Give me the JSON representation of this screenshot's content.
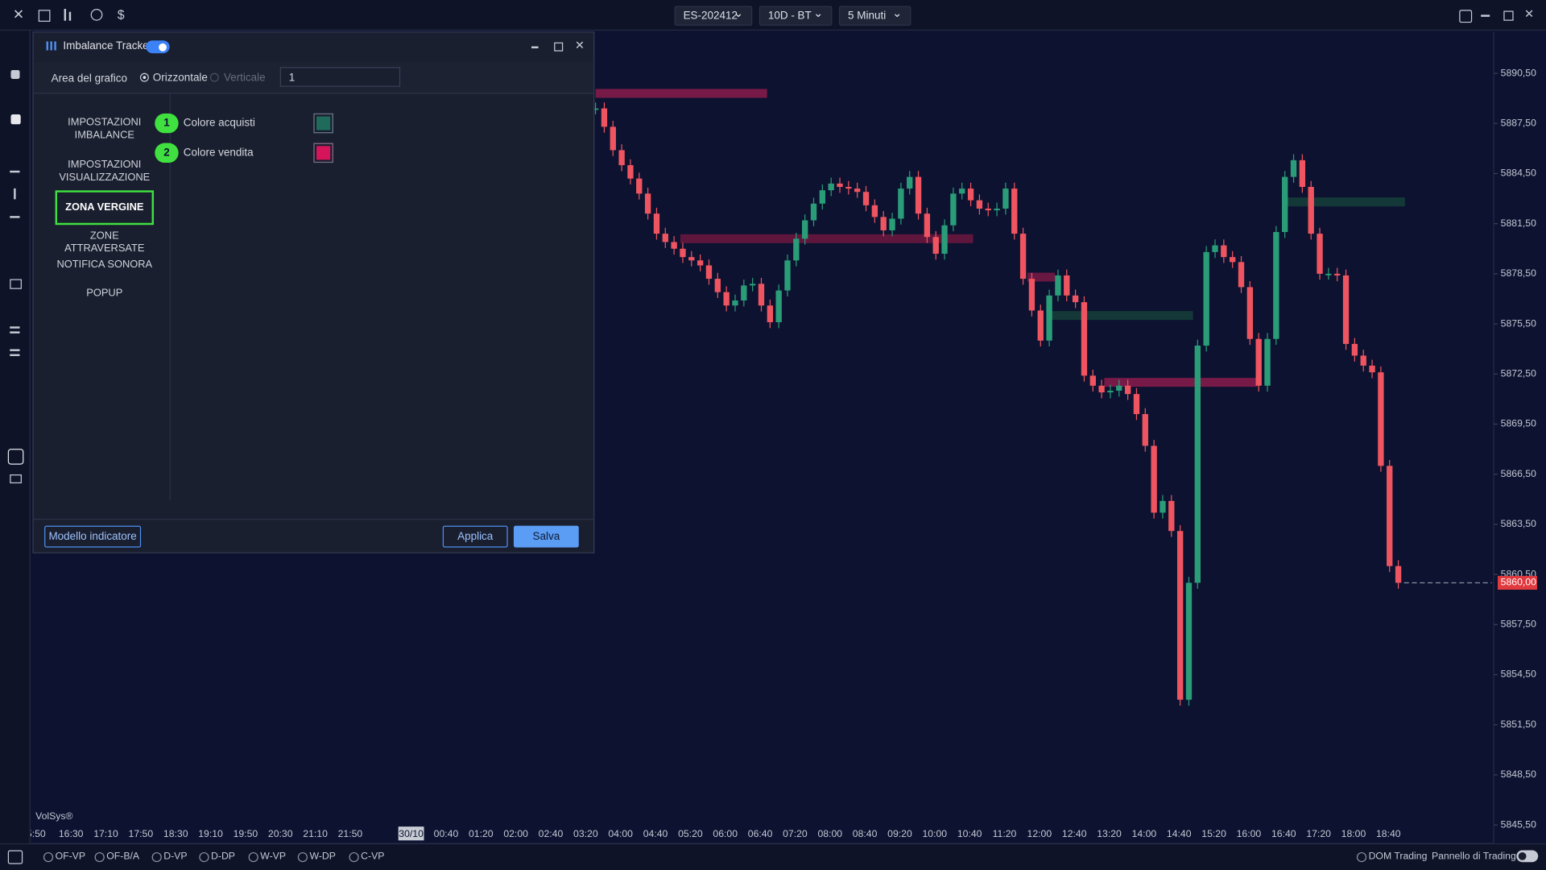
{
  "chart_data": {
    "type": "candlestick",
    "x": [
      "5:50",
      "16:30",
      "17:10",
      "17:50",
      "18:30",
      "19:10",
      "19:50",
      "20:30",
      "21:10",
      "21:50",
      "30/10",
      "00:40",
      "01:20",
      "02:00",
      "02:40",
      "03:20",
      "04:00",
      "04:40",
      "05:20",
      "06:00",
      "06:40",
      "07:20",
      "08:00",
      "08:40",
      "09:20",
      "10:00",
      "10:40",
      "11:20",
      "12:00",
      "12:40",
      "13:20",
      "14:00",
      "14:40",
      "15:20",
      "16:00",
      "16:40",
      "17:20",
      "18:00",
      "18:40"
    ],
    "closes": [
      5888.4,
      5887.3,
      5885.9,
      5885.0,
      5884.2,
      5883.3,
      5882.1,
      5880.9,
      5880.4,
      5880.0,
      5879.5,
      5879.3,
      5879.0,
      5878.2,
      5877.4,
      5876.6,
      5876.9,
      5877.8,
      5877.9,
      5876.6,
      5875.6,
      5877.5,
      5879.3,
      5880.6,
      5881.7,
      5882.7,
      5883.5,
      5883.9,
      5883.7,
      5883.6,
      5883.4,
      5882.6,
      5881.9,
      5881.1,
      5881.8,
      5883.6,
      5884.3,
      5882.1,
      5880.7,
      5879.7,
      5881.4,
      5883.3,
      5883.6,
      5882.9,
      5882.4,
      5882.3,
      5882.4,
      5883.6,
      5880.9,
      5878.2,
      5876.3,
      5874.5,
      5877.2,
      5878.4,
      5877.2,
      5876.8,
      5872.4,
      5871.8,
      5871.4,
      5871.5,
      5871.8,
      5871.3,
      5870.1,
      5868.2,
      5864.2,
      5864.9,
      5863.1,
      5853.0,
      5860.0,
      5874.2,
      5879.8,
      5880.2,
      5879.5,
      5879.2,
      5877.7,
      5874.6,
      5871.8,
      5874.6,
      5881.0,
      5884.3,
      5885.3,
      5883.7,
      5880.9,
      5878.5,
      5878.5,
      5878.4,
      5874.3,
      5873.6,
      5873.0,
      5872.6,
      5867.0,
      5861.0,
      5860.0
    ],
    "up_color": "#2a9d78",
    "down_color": "#ef5560",
    "zones": [
      {
        "price": 5889.3,
        "color": "#8c1c4c"
      },
      {
        "price": 5880.6,
        "color": "#6e1840"
      },
      {
        "price": 5878.3,
        "color": "#7a1a45"
      },
      {
        "price": 5872.0,
        "color": "#8c1c4c"
      },
      {
        "price": 5882.8,
        "color": "#163f3a"
      },
      {
        "price": 5876.0,
        "color": "#163f3a"
      }
    ],
    "ylim": [
      5844.4,
      5893.0
    ],
    "yticks": [
      {
        "value": 5890.5,
        "label": "5890,50"
      },
      {
        "value": 5887.5,
        "label": "5887,50"
      },
      {
        "value": 5884.5,
        "label": "5884,50"
      },
      {
        "value": 5881.5,
        "label": "5881,50"
      },
      {
        "value": 5878.5,
        "label": "5878,50"
      },
      {
        "value": 5875.5,
        "label": "5875,50"
      },
      {
        "value": 5872.5,
        "label": "5872,50"
      },
      {
        "value": 5869.5,
        "label": "5869,50"
      },
      {
        "value": 5866.5,
        "label": "5866,50"
      },
      {
        "value": 5863.5,
        "label": "5863,50"
      },
      {
        "value": 5860.5,
        "label": "5860,50"
      },
      {
        "value": 5857.5,
        "label": "5857,50"
      },
      {
        "value": 5854.5,
        "label": "5854,50"
      },
      {
        "value": 5851.5,
        "label": "5851,50"
      },
      {
        "value": 5848.5,
        "label": "5848,50"
      },
      {
        "value": 5845.5,
        "label": "5845,50"
      }
    ],
    "last_price": {
      "value": 5860.0,
      "label": "5860,00"
    },
    "grid": false,
    "watermark": "VolSys®"
  },
  "ui": {
    "top": {
      "symbol": "ES-202412",
      "range": "10D - BT",
      "timeframe": "5 Minuti"
    },
    "dialog": {
      "title": "Imbalance Tracker",
      "area_label": "Area del grafico",
      "option_h": "Orizzontale",
      "option_v": "Verticale",
      "select": "1",
      "menu": [
        "IMPOSTAZIONI IMBALANCE",
        "IMPOSTAZIONI VISUALIZZAZIONE",
        "ZONA VERGINE",
        "ZONE ATTRAVERSATE",
        "NOTIFICA SONORA",
        "POPUP"
      ],
      "settings": [
        {
          "num": "1",
          "label": "Colore acquisti",
          "color": "#1e6b5c"
        },
        {
          "num": "2",
          "label": "Colore vendita",
          "color": "#d6145a"
        }
      ],
      "template": "Modello indicatore",
      "apply": "Applica",
      "save": "Salva"
    },
    "bottom": {
      "tabs": [
        "OF-VP",
        "OF-B/A",
        "D-VP",
        "D-DP",
        "W-VP",
        "W-DP",
        "C-VP"
      ],
      "dom": "DOM Trading",
      "panel": "Pannello di Trading"
    }
  }
}
